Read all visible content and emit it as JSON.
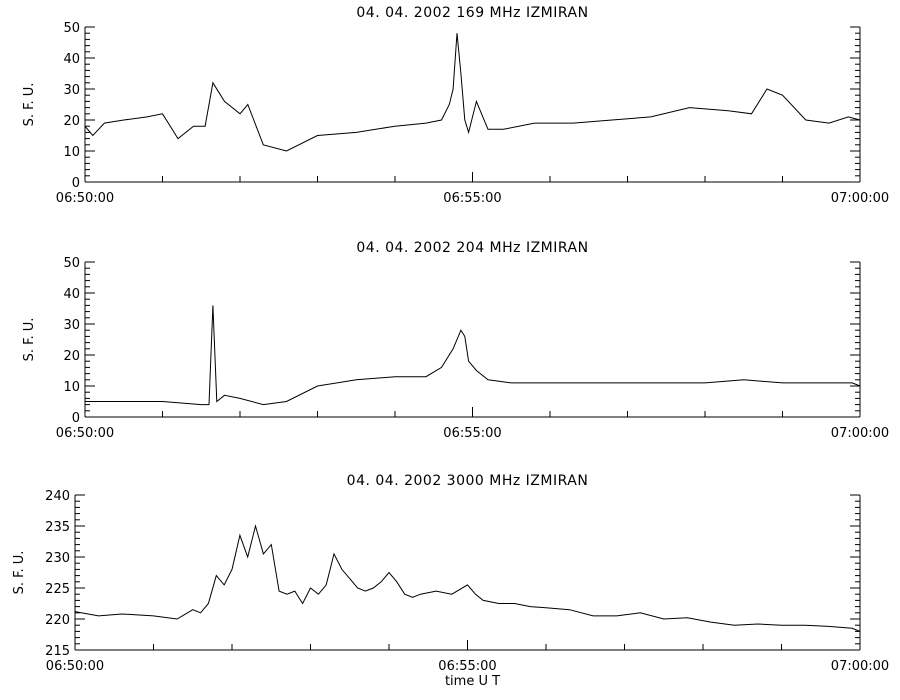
{
  "chart_data": [
    {
      "type": "line",
      "title": "04.  04.  2002    169  MHz    IZMIRAN",
      "ylabel": "S. F. U.",
      "xlabel": "",
      "ylim": [
        0,
        50
      ],
      "yticks": [
        "0",
        "10",
        "20",
        "30",
        "40",
        "50"
      ],
      "xticks": [
        "06:50:00",
        "06:55:00",
        "07:00:00"
      ],
      "grid": false,
      "series": [
        {
          "x": [
            0,
            0.1,
            0.25,
            0.5,
            0.8,
            1.0,
            1.2,
            1.4,
            1.55,
            1.65,
            1.8,
            2.0,
            2.1,
            2.3,
            2.6,
            3.0,
            3.5,
            4.0,
            4.4,
            4.6,
            4.7,
            4.75,
            4.8,
            4.85,
            4.9,
            4.95,
            5.05,
            5.2,
            5.4,
            5.8,
            6.3,
            6.8,
            7.3,
            7.8,
            8.3,
            8.6,
            8.8,
            9.0,
            9.3,
            9.6,
            9.85,
            10.0
          ],
          "values": [
            18,
            15,
            19,
            20,
            21,
            22,
            14,
            18,
            18,
            32,
            26,
            22,
            25,
            12,
            10,
            15,
            16,
            18,
            19,
            20,
            25,
            30,
            48,
            35,
            20,
            16,
            26,
            17,
            17,
            19,
            19,
            20,
            21,
            24,
            23,
            22,
            30,
            28,
            20,
            19,
            21,
            20
          ]
        }
      ]
    },
    {
      "type": "line",
      "title": "04.  04.  2002    204  MHz    IZMIRAN",
      "ylabel": "S. F. U.",
      "xlabel": "",
      "ylim": [
        0,
        50
      ],
      "yticks": [
        "0",
        "10",
        "20",
        "30",
        "40",
        "50"
      ],
      "xticks": [
        "06:50:00",
        "06:55:00",
        "07:00:00"
      ],
      "grid": false,
      "series": [
        {
          "x": [
            0,
            0.5,
            1.0,
            1.5,
            1.6,
            1.65,
            1.7,
            1.8,
            2.0,
            2.3,
            2.6,
            3.0,
            3.5,
            4.0,
            4.4,
            4.6,
            4.75,
            4.85,
            4.9,
            4.95,
            5.05,
            5.2,
            5.5,
            6.0,
            6.5,
            7.0,
            7.5,
            8.0,
            8.5,
            9.0,
            9.5,
            9.9,
            10.0
          ],
          "values": [
            5,
            5,
            5,
            4,
            4,
            36,
            5,
            7,
            6,
            4,
            5,
            10,
            12,
            13,
            13,
            16,
            22,
            28,
            26,
            18,
            15,
            12,
            11,
            11,
            11,
            11,
            11,
            11,
            12,
            11,
            11,
            11,
            10
          ]
        }
      ]
    },
    {
      "type": "line",
      "title": "04.  04.  2002     3000  MHz    IZMIRAN",
      "ylabel": "S. F. U.",
      "xlabel": "time   U T",
      "ylim": [
        215,
        240
      ],
      "yticks": [
        "215",
        "220",
        "225",
        "230",
        "235",
        "240"
      ],
      "xticks": [
        "06:50:00",
        "06:55:00",
        "07:00:00"
      ],
      "grid": false,
      "series": [
        {
          "x": [
            0,
            0.3,
            0.6,
            1.0,
            1.3,
            1.5,
            1.6,
            1.7,
            1.8,
            1.9,
            2.0,
            2.1,
            2.2,
            2.3,
            2.4,
            2.5,
            2.6,
            2.7,
            2.8,
            2.9,
            3.0,
            3.1,
            3.2,
            3.3,
            3.4,
            3.5,
            3.6,
            3.7,
            3.8,
            3.9,
            4.0,
            4.1,
            4.2,
            4.3,
            4.4,
            4.6,
            4.8,
            5.0,
            5.1,
            5.2,
            5.4,
            5.6,
            5.8,
            6.0,
            6.3,
            6.6,
            6.9,
            7.2,
            7.5,
            7.8,
            8.1,
            8.4,
            8.7,
            9.0,
            9.3,
            9.6,
            9.9,
            10.0
          ],
          "values": [
            221.2,
            220.5,
            220.8,
            220.5,
            220.0,
            221.5,
            221.0,
            222.5,
            227.0,
            225.5,
            228.0,
            233.5,
            230.0,
            235.0,
            230.5,
            232.0,
            224.5,
            224.0,
            224.5,
            222.5,
            225.0,
            224.0,
            225.5,
            230.5,
            228.0,
            226.5,
            225.0,
            224.5,
            225.0,
            226.0,
            227.5,
            226.0,
            224.0,
            223.5,
            224.0,
            224.5,
            224.0,
            225.5,
            224.0,
            223.0,
            222.5,
            222.5,
            222.0,
            221.8,
            221.5,
            220.5,
            220.5,
            221.0,
            220.0,
            220.2,
            219.5,
            219.0,
            219.2,
            219.0,
            219.0,
            218.8,
            218.5,
            218.0
          ]
        }
      ]
    }
  ]
}
